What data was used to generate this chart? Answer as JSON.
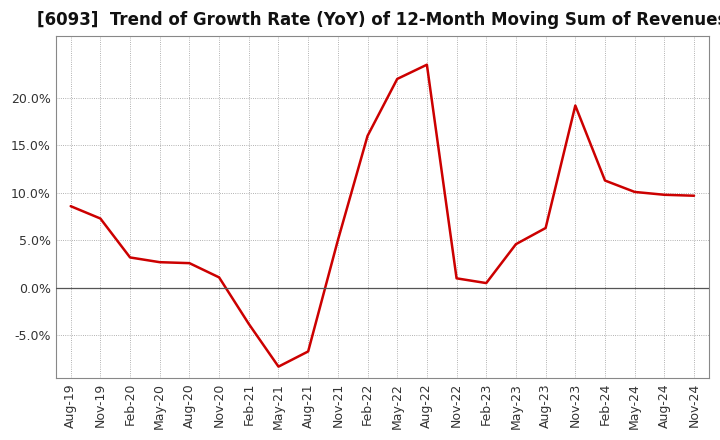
{
  "title": "[6093]  Trend of Growth Rate (YoY) of 12-Month Moving Sum of Revenues",
  "line_color": "#cc0000",
  "background_color": "#ffffff",
  "plot_background_color": "#ffffff",
  "grid_color": "#999999",
  "x_labels": [
    "Aug-19",
    "Nov-19",
    "Feb-20",
    "May-20",
    "Aug-20",
    "Nov-20",
    "Feb-21",
    "May-21",
    "Aug-21",
    "Nov-21",
    "Feb-22",
    "May-22",
    "Aug-22",
    "Nov-22",
    "Feb-23",
    "May-23",
    "Aug-23",
    "Nov-23",
    "Feb-24",
    "May-24",
    "Aug-24",
    "Nov-24"
  ],
  "y_values": [
    0.086,
    0.073,
    0.032,
    0.027,
    0.026,
    0.011,
    -0.038,
    -0.083,
    -0.067,
    0.05,
    0.16,
    0.22,
    0.235,
    0.01,
    0.005,
    0.046,
    0.063,
    0.192,
    0.113,
    0.101,
    0.098,
    0.097
  ],
  "ylim": [
    -0.095,
    0.265
  ],
  "yticks": [
    -0.05,
    0.0,
    0.05,
    0.1,
    0.15,
    0.2
  ],
  "title_fontsize": 12,
  "axis_fontsize": 9,
  "line_width": 1.8,
  "figsize": [
    7.2,
    4.4
  ],
  "dpi": 100
}
